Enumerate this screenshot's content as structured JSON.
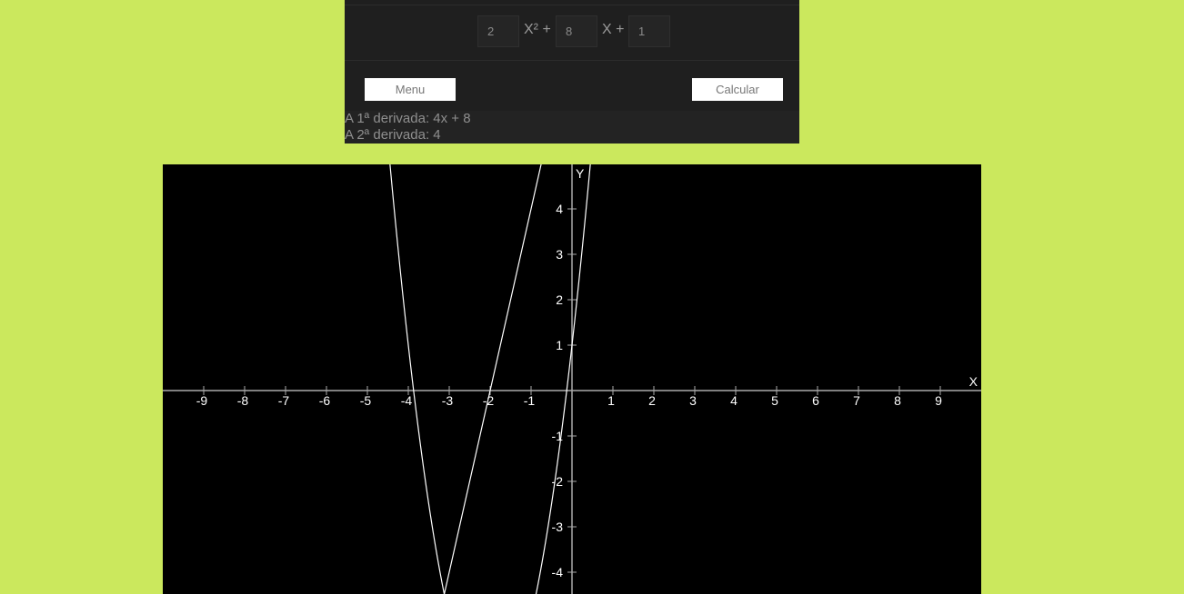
{
  "calculator": {
    "coef_a": "2",
    "coef_b": "8",
    "coef_c": "1",
    "x_squared_plus": "X² +",
    "x_plus": "X +",
    "menu_label": "Menu",
    "calc_label": "Calcular",
    "first_derivative": "A 1ª derivada: 4x + 8",
    "second_derivative": "A 2ª derivada: 4"
  },
  "chart_data": {
    "type": "line",
    "xlabel": "X",
    "ylabel": "Y",
    "xlim": [
      -10,
      10
    ],
    "ylim": [
      -4.5,
      5
    ],
    "x_ticks": [
      -9,
      -8,
      -7,
      -6,
      -5,
      -4,
      -3,
      -2,
      -1,
      1,
      2,
      3,
      4,
      5,
      6,
      7,
      8,
      9
    ],
    "y_ticks": [
      -4,
      -3,
      -2,
      -1,
      1,
      2,
      3,
      4
    ],
    "grid": false,
    "series": [
      {
        "function": "2x^2 + 8x + 1",
        "coefficients": [
          2,
          8,
          1
        ],
        "color": "#ffffff"
      },
      {
        "function": "4x + 8",
        "coefficients": [
          0,
          4,
          8
        ],
        "color": "#ffffff"
      }
    ],
    "colors": {
      "background": "#000000",
      "axis": "#aaaaaa",
      "curve": "#ffffff"
    }
  }
}
